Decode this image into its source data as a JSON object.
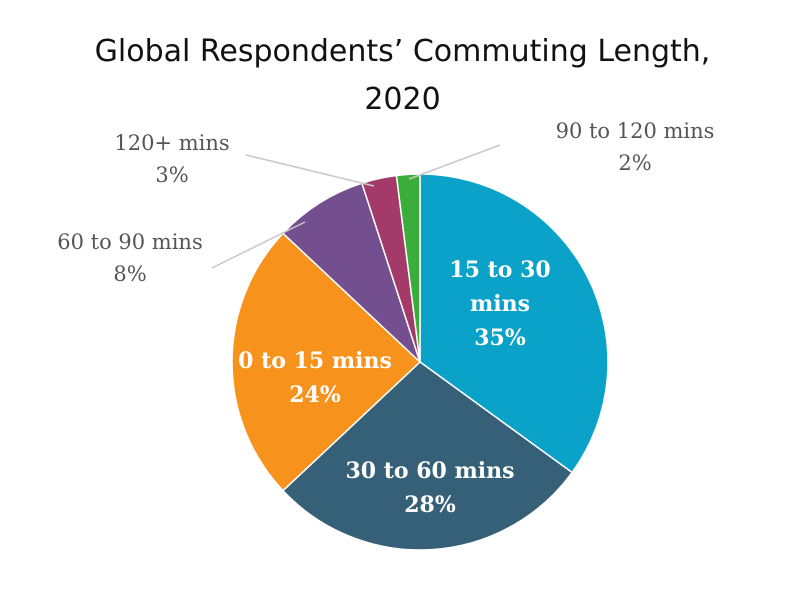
{
  "chart_data": {
    "type": "pie",
    "title_lines": [
      "Global Respondents’ Commuting Length,",
      "2020"
    ],
    "slices": [
      {
        "label_lines": [
          "15 to 30",
          "mins"
        ],
        "pct": "35%",
        "value": 35,
        "color": "#0aa2c8"
      },
      {
        "label_lines": [
          "30 to 60 mins"
        ],
        "pct": "28%",
        "value": 28,
        "color": "#365f78"
      },
      {
        "label_lines": [
          "0 to 15 mins"
        ],
        "pct": "24%",
        "value": 24,
        "color": "#f7931c"
      },
      {
        "label_lines": [
          "60 to 90 mins"
        ],
        "pct": "8%",
        "value": 8,
        "color": "#744f90"
      },
      {
        "label_lines": [
          "120+ mins"
        ],
        "pct": "3%",
        "value": 3,
        "color": "#a33a6a"
      },
      {
        "label_lines": [
          "90 to 120 mins"
        ],
        "pct": "2%",
        "value": 2,
        "color": "#3aad3a"
      }
    ]
  }
}
